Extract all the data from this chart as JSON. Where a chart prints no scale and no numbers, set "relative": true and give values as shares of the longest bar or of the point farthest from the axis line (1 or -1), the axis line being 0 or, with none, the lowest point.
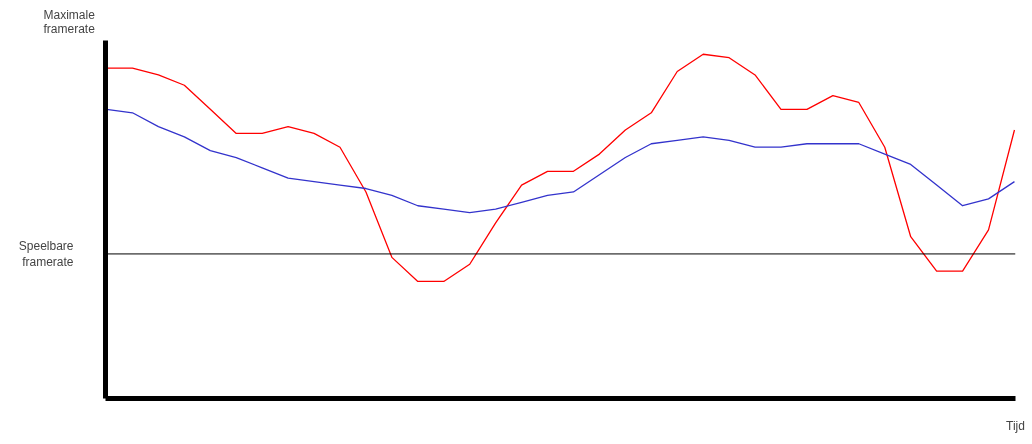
{
  "chart_data": {
    "type": "line",
    "relative": true,
    "xlabel": "Tijd",
    "annotations": [
      "Maximale framerate"
    ],
    "categories": [
      null,
      null,
      null,
      null,
      null,
      null,
      null,
      null,
      null,
      null,
      null,
      null,
      null,
      null,
      null,
      null,
      null,
      null,
      null,
      null,
      null,
      null,
      null,
      null,
      null,
      null,
      null,
      null,
      null,
      null,
      null,
      null,
      null,
      null,
      null,
      null
    ],
    "series": [
      {
        "color": "#ff0000",
        "values": [
          0.96,
          0.96,
          0.94,
          0.91,
          0.84,
          0.77,
          0.77,
          0.79,
          0.77,
          0.73,
          0.6,
          0.41,
          0.34,
          0.34,
          0.39,
          0.51,
          0.62,
          0.66,
          0.66,
          0.71,
          0.78,
          0.83,
          0.95,
          1.0,
          0.99,
          0.94,
          0.84,
          0.84,
          0.88,
          0.86,
          0.73,
          0.47,
          0.37,
          0.37,
          0.49,
          0.78
        ]
      },
      {
        "color": "#3333cc",
        "values": [
          0.84,
          0.83,
          0.79,
          0.76,
          0.72,
          0.7,
          0.67,
          0.64,
          0.63,
          0.62,
          0.61,
          0.59,
          0.56,
          0.55,
          0.54,
          0.55,
          0.57,
          0.59,
          0.6,
          0.65,
          0.7,
          0.74,
          0.75,
          0.76,
          0.75,
          0.73,
          0.73,
          0.74,
          0.74,
          0.74,
          0.71,
          0.68,
          0.62,
          0.56,
          0.58,
          0.63
        ]
      }
    ],
    "ref_lines": [
      {
        "axis": "y",
        "value": 0.42,
        "label": "Speelbare framerate",
        "color": "#000000"
      }
    ],
    "grid": false,
    "marker": "none",
    "line_style": "solid"
  }
}
